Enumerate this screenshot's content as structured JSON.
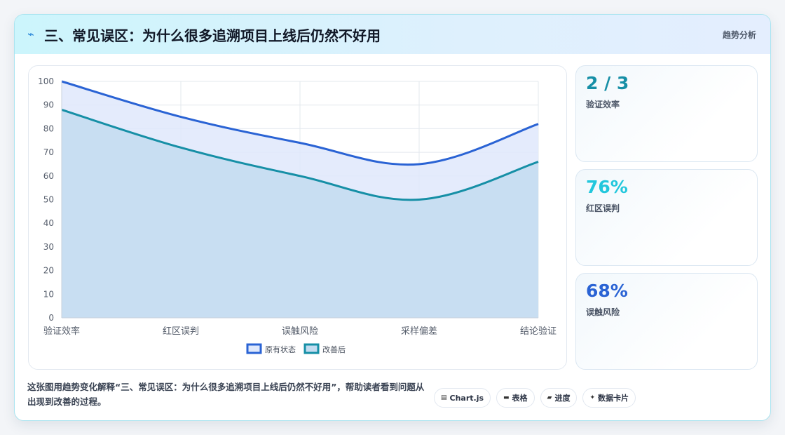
{
  "header": {
    "title": "三、常见误区：为什么很多追溯项目上线后仍然不好用",
    "tag": "趋势分析"
  },
  "stats": [
    {
      "value": "2 / 3",
      "label": "验证效率",
      "color": "#168fa6"
    },
    {
      "value": "76%",
      "label": "红区误判",
      "color": "#22c7dc"
    },
    {
      "value": "68%",
      "label": "误触风险",
      "color": "#2a63d4"
    }
  ],
  "description": "这张图用趋势变化解释“三、常见误区：为什么很多追溯项目上线后仍然不好用”，帮助读者看到问题从出现到改善的过程。",
  "chips": [
    {
      "icon": "▤",
      "icon_name": "table-icon",
      "label": "Chart.js"
    },
    {
      "icon": "▬",
      "icon_name": "table-icon",
      "label": "表格"
    },
    {
      "icon": "▰",
      "icon_name": "progress-icon",
      "label": "进度"
    },
    {
      "icon": "✦",
      "icon_name": "sparkle-icon",
      "label": "数据卡片"
    }
  ],
  "chart_data": {
    "type": "area",
    "categories": [
      "验证效率",
      "红区误判",
      "误触风险",
      "采样偏差",
      "结论验证"
    ],
    "series": [
      {
        "name": "原有状态",
        "values": [
          100,
          85,
          74,
          65,
          82
        ],
        "color": "#2a63d4",
        "fill": "#dfe8fb"
      },
      {
        "name": "改善后",
        "values": [
          88,
          72,
          60,
          50,
          66
        ],
        "color": "#168fa6",
        "fill": "#c3dcf0"
      }
    ],
    "ylim": [
      0,
      100
    ],
    "yticks": [
      0,
      10,
      20,
      30,
      40,
      50,
      60,
      70,
      80,
      90,
      100
    ],
    "grid": true,
    "legend": "bottom"
  }
}
